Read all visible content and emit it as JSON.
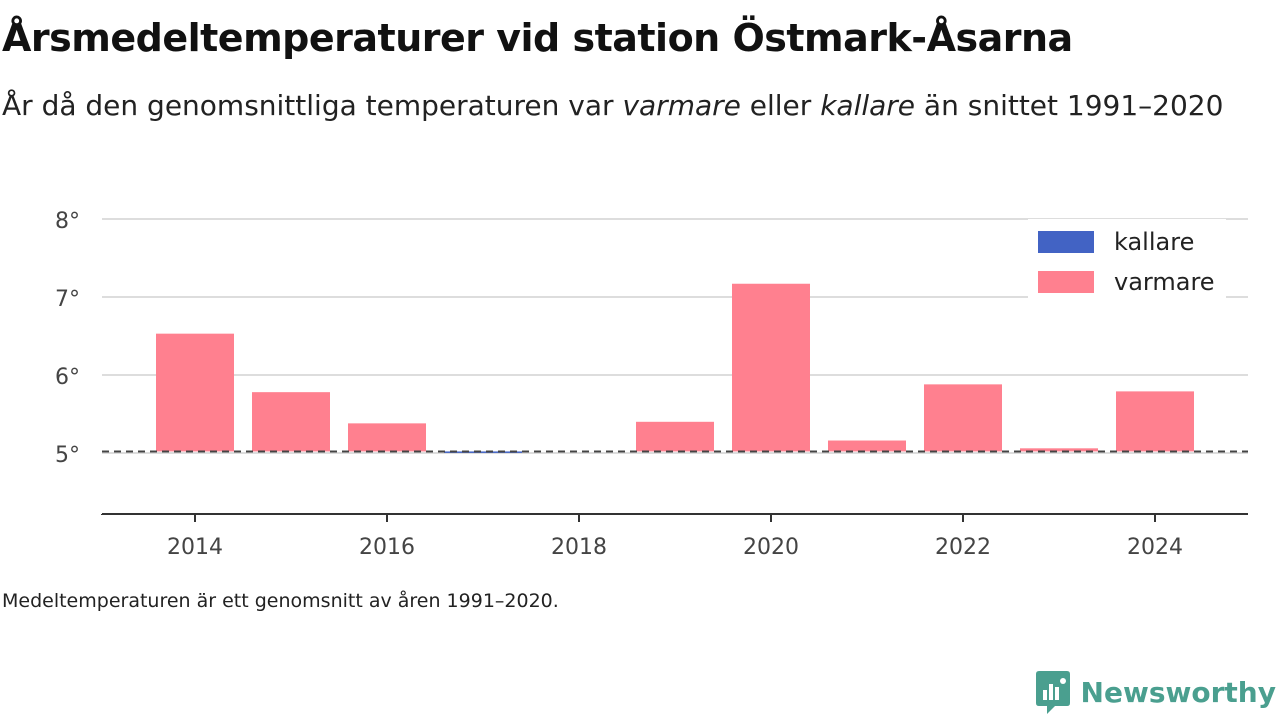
{
  "header": {
    "title": "Årsmedeltemperaturer vid station Östmark-Åsarna",
    "subtitle_pre": "År då den genomsnittliga temperaturen var ",
    "subtitle_em1": "varmare",
    "subtitle_mid": " eller ",
    "subtitle_em2": "kallare",
    "subtitle_post": " än snittet 1991–2020"
  },
  "footer": {
    "note": "Medeltemperaturen är ett genomsnitt av åren 1991–2020.",
    "brand": "Newsworthy"
  },
  "colors": {
    "warmer": "#ff808f",
    "colder": "#4263c4",
    "reference_line": "#444444",
    "brand": "#4a9f8f"
  },
  "chart_data": {
    "type": "bar",
    "x": [
      2014,
      2015,
      2016,
      2017,
      2019,
      2020,
      2021,
      2022,
      2023,
      2024
    ],
    "values": [
      6.53,
      5.78,
      5.38,
      5.01,
      5.4,
      7.17,
      5.16,
      5.88,
      5.06,
      5.79
    ],
    "baseline": 5.02,
    "xticks": [
      2014,
      2016,
      2018,
      2020,
      2022,
      2024
    ],
    "yticks": [
      5,
      6,
      7,
      8
    ],
    "ytick_suffix": "°",
    "ylim": [
      4.2,
      8.0
    ],
    "xlim": [
      2013,
      2025
    ],
    "grid": true,
    "legend": {
      "position": "top-right",
      "entries": [
        {
          "label": "kallare",
          "color": "#4263c4"
        },
        {
          "label": "varmare",
          "color": "#ff808f"
        }
      ]
    }
  }
}
